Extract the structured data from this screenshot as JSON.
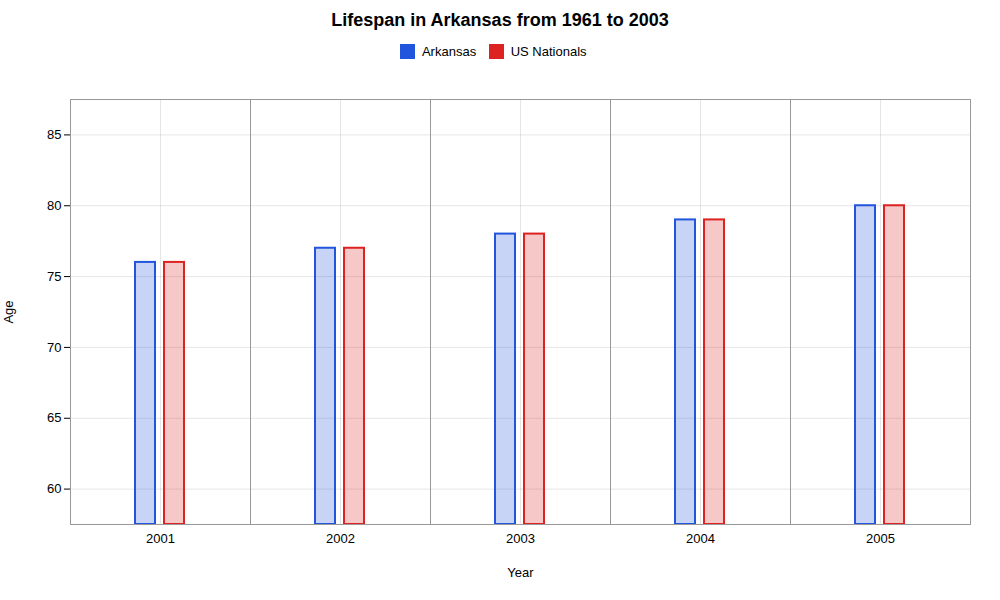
{
  "chart_data": {
    "type": "bar",
    "title": "Lifespan in Arkansas from 1961 to 2003",
    "xlabel": "Year",
    "ylabel": "Age",
    "categories": [
      "2001",
      "2002",
      "2003",
      "2004",
      "2005"
    ],
    "series": [
      {
        "name": "Arkansas",
        "color": "#2255dd",
        "values": [
          76.0,
          77.0,
          78.0,
          79.0,
          80.0
        ]
      },
      {
        "name": "US Nationals",
        "color": "#dd2222",
        "values": [
          76.0,
          77.0,
          78.0,
          79.0,
          80.0
        ]
      }
    ],
    "ylim": [
      57.5,
      87.5
    ],
    "yticks": [
      60,
      65,
      70,
      75,
      80,
      85
    ],
    "grid": true,
    "legend": "top"
  }
}
